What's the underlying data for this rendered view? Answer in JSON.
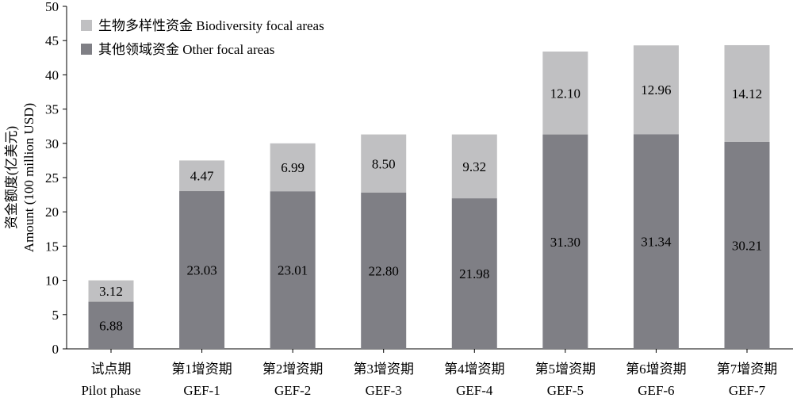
{
  "chart_data": {
    "type": "bar",
    "stacked": true,
    "categories": [
      [
        "试点期",
        "Pilot phase"
      ],
      [
        "第1增资期",
        "GEF-1"
      ],
      [
        "第2增资期",
        "GEF-2"
      ],
      [
        "第3增资期",
        "GEF-3"
      ],
      [
        "第4增资期",
        "GEF-4"
      ],
      [
        "第5增资期",
        "GEF-5"
      ],
      [
        "第6增资期",
        "GEF-6"
      ],
      [
        "第7增资期",
        "GEF-7"
      ]
    ],
    "series": [
      {
        "name": "其他领域资金 Other focal areas",
        "color": "#7f7f85",
        "values": [
          6.88,
          23.03,
          23.01,
          22.8,
          21.98,
          31.3,
          31.34,
          30.21
        ],
        "labels": [
          "6.88",
          "23.03",
          "23.01",
          "22.80",
          "21.98",
          "31.30",
          "31.34",
          "30.21"
        ]
      },
      {
        "name": "生物多样性资金 Biodiversity focal areas",
        "color": "#c0c0c2",
        "values": [
          3.12,
          4.47,
          6.99,
          8.5,
          9.32,
          12.1,
          12.96,
          14.12
        ],
        "labels": [
          "3.12",
          "4.47",
          "6.99",
          "8.50",
          "9.32",
          "12.10",
          "12.96",
          "14.12"
        ]
      }
    ],
    "legend_order": [
      1,
      0
    ],
    "legend_position": "top-left",
    "ylabel_lines": [
      "资金额度(亿美元)",
      "Amount (100 million USD)"
    ],
    "ylim": [
      0,
      50
    ],
    "yticks": [
      0,
      5,
      10,
      15,
      20,
      25,
      30,
      35,
      40,
      45,
      50
    ],
    "grid": false
  }
}
